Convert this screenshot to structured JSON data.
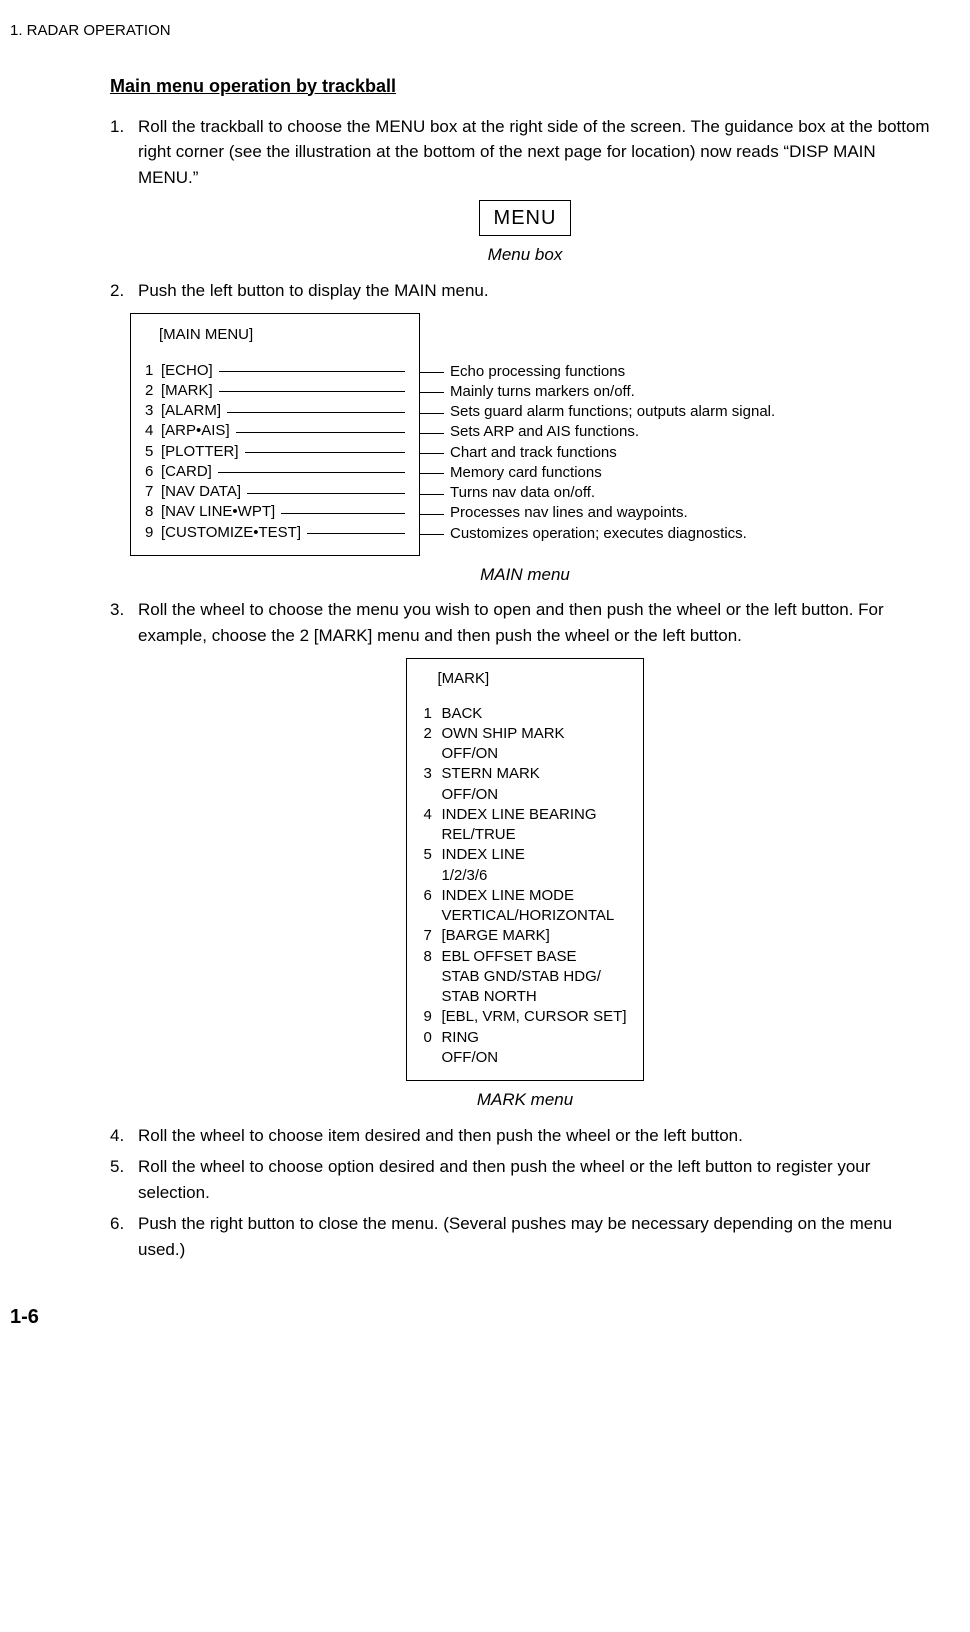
{
  "header": "1. RADAR OPERATION",
  "section_title": "Main menu operation by trackball",
  "steps": [
    {
      "n": "1.",
      "text": "Roll the trackball to choose the MENU box at the right side of the screen. The guidance box at the bottom right corner (see the illustration at the bottom of the next page for location) now reads “DISP MAIN MENU.”"
    },
    {
      "n": "2.",
      "text": "Push the left button to display the MAIN menu."
    },
    {
      "n": "3.",
      "text": "Roll the wheel to choose the menu you wish to open and then push the wheel or the left button. For example, choose the 2 [MARK] menu and then push the wheel or the left button."
    },
    {
      "n": "4.",
      "text": "Roll the wheel to choose item desired and then push the wheel or the left button."
    },
    {
      "n": "5.",
      "text": "Roll the wheel to choose option desired and then push the wheel or the left button to register your selection."
    },
    {
      "n": "6.",
      "text": "Push the right button to close the menu. (Several pushes may be necessary depending on the menu used.)"
    }
  ],
  "menu_box_label": "MENU",
  "caption_menu_box": "Menu box",
  "main_menu": {
    "title": "[MAIN MENU]",
    "items": [
      {
        "n": "1",
        "label": "[ECHO]",
        "desc": "Echo processing functions"
      },
      {
        "n": "2",
        "label": "[MARK]",
        "desc": "Mainly turns markers on/off."
      },
      {
        "n": "3",
        "label": "[ALARM]",
        "desc": "Sets guard alarm functions; outputs alarm signal."
      },
      {
        "n": "4",
        "label": "[ARP•AIS]",
        "desc": "Sets ARP and AIS functions."
      },
      {
        "n": "5",
        "label": "[PLOTTER]",
        "desc": "Chart and track functions"
      },
      {
        "n": "6",
        "label": "[CARD]",
        "desc": "Memory card functions"
      },
      {
        "n": "7",
        "label": "[NAV DATA]",
        "desc": "Turns nav data on/off."
      },
      {
        "n": "8",
        "label": "[NAV LINE•WPT]",
        "desc": "Processes nav lines and waypoints."
      },
      {
        "n": "9",
        "label": "[CUSTOMIZE•TEST]",
        "desc": "Customizes operation; executes diagnostics."
      }
    ]
  },
  "caption_main_menu": "MAIN menu",
  "mark_menu": {
    "title": "[MARK]",
    "rows": [
      {
        "n": "1",
        "label": "BACK",
        "sub": ""
      },
      {
        "n": "2",
        "label": "OWN SHIP MARK",
        "sub": "OFF/ON"
      },
      {
        "n": "3",
        "label": "STERN MARK",
        "sub": "OFF/ON"
      },
      {
        "n": "4",
        "label": "INDEX LINE BEARING",
        "sub": "REL/TRUE"
      },
      {
        "n": "5",
        "label": "INDEX LINE",
        "sub": "1/2/3/6"
      },
      {
        "n": "6",
        "label": "INDEX LINE MODE",
        "sub": "VERTICAL/HORIZONTAL"
      },
      {
        "n": "7",
        "label": "[BARGE MARK]",
        "sub": ""
      },
      {
        "n": "8",
        "label": "EBL OFFSET BASE",
        "sub": "STAB GND/STAB HDG/",
        "sub2": "STAB NORTH"
      },
      {
        "n": "9",
        "label": "[EBL, VRM, CURSOR SET]",
        "sub": ""
      },
      {
        "n": "0",
        "label": "RING",
        "sub": "OFF/ON"
      }
    ]
  },
  "caption_mark_menu": "MARK menu",
  "page_number": "1-6"
}
